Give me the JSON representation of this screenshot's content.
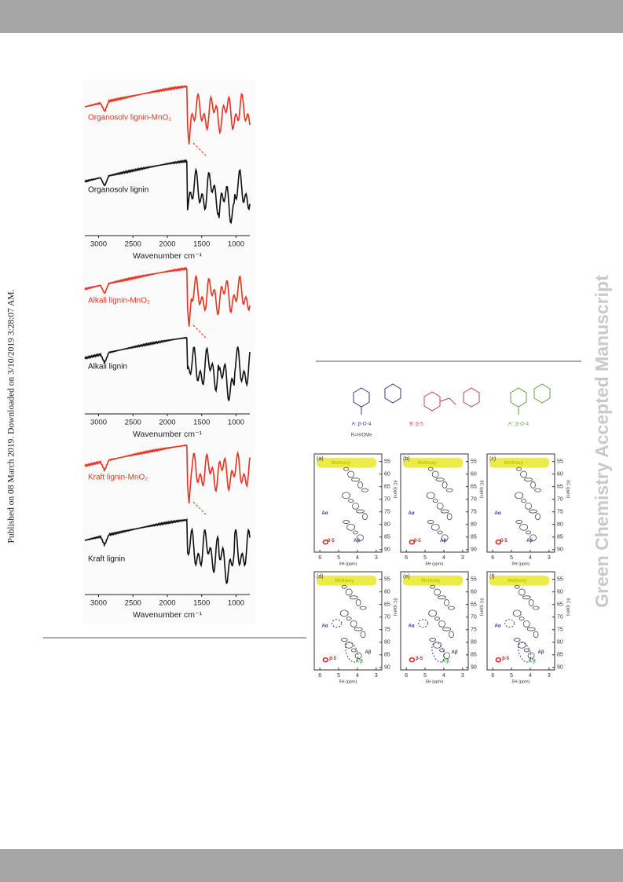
{
  "published": "Published on 08 March 2019. Downloaded on 3/10/2019 3:28:07 AM.",
  "watermark": "Green Chemistry Accepted Manuscript",
  "ftir": {
    "xlabel": "Wavenumber cm⁻¹",
    "xlim": [
      3200,
      800
    ],
    "xticks": [
      3000,
      2500,
      2000,
      1500,
      1000
    ],
    "panels": [
      {
        "labels": [
          "Organosolv lignin-MnO₂",
          "Organosolv lignin"
        ]
      },
      {
        "labels": [
          "Alkali lignin-MnO₂",
          "Alkali lignin"
        ]
      },
      {
        "labels": [
          "Kraft lignin-MnO₂",
          "Kraft lignin"
        ]
      }
    ]
  },
  "nmr": {
    "structures": [
      "A: β-O-4",
      "B: β-5",
      "A': β-O-4"
    ],
    "r_group": "R=H/OMe",
    "xlabel": "δH (ppm)",
    "ylabel": "δC (ppm)",
    "xlim": [
      6.3,
      2.7
    ],
    "ylim": [
      52,
      91
    ],
    "xticks": [
      6,
      5,
      4,
      3
    ],
    "yticks": [
      55,
      60,
      65,
      70,
      75,
      80,
      85,
      90
    ],
    "panels": [
      {
        "label": "(a)",
        "annotations": [
          "Methoxy",
          "Aα",
          "Aβ",
          "β-5"
        ]
      },
      {
        "label": "(b)",
        "annotations": [
          "Methoxy",
          "Aα",
          "Aβ",
          "β-5"
        ]
      },
      {
        "label": "(c)",
        "annotations": [
          "Methoxy",
          "Aα",
          "Aβ",
          "β-5"
        ]
      },
      {
        "label": "(d)",
        "annotations": [
          "Methoxy",
          "Aα",
          "A'β",
          "β-5",
          "Aβ"
        ]
      },
      {
        "label": "(e)",
        "annotations": [
          "Methoxy",
          "Aα",
          "A'β",
          "β-5",
          "Aβ"
        ]
      },
      {
        "label": "(f)",
        "annotations": [
          "Methoxy",
          "Aα",
          "A'β",
          "β-5",
          "Aβ"
        ]
      }
    ]
  }
}
